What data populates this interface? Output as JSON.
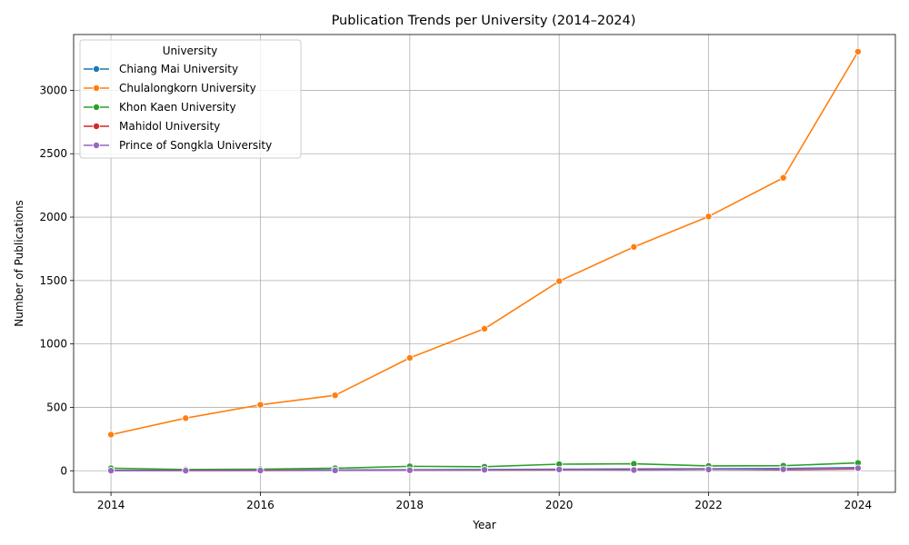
{
  "chart_data": {
    "type": "line",
    "title": "Publication Trends per University (2014–2024)",
    "xlabel": "Year",
    "ylabel": "Number of Publications",
    "xlim": [
      2013.5,
      2024.5
    ],
    "ylim": [
      -170,
      3440
    ],
    "x_ticks": [
      2014,
      2016,
      2018,
      2020,
      2022,
      2024
    ],
    "y_ticks": [
      0,
      500,
      1000,
      1500,
      2000,
      2500,
      3000
    ],
    "grid": true,
    "legend": {
      "title": "University",
      "placement": "top-left"
    },
    "x": [
      2014,
      2015,
      2016,
      2017,
      2018,
      2019,
      2020,
      2021,
      2022,
      2023,
      2024
    ],
    "series": [
      {
        "name": "Chiang Mai University",
        "color": "#1f77b4",
        "values": [
          2,
          3,
          5,
          6,
          8,
          10,
          12,
          14,
          15,
          18,
          25
        ]
      },
      {
        "name": "Chulalongkorn University",
        "color": "#ff7f0e",
        "values": [
          285,
          415,
          520,
          595,
          890,
          1120,
          1495,
          1765,
          2005,
          2310,
          3305
        ]
      },
      {
        "name": "Khon Kaen University",
        "color": "#2ca02c",
        "values": [
          20,
          10,
          12,
          20,
          35,
          32,
          52,
          55,
          38,
          40,
          62
        ]
      },
      {
        "name": "Mahidol University",
        "color": "#d62728",
        "values": [
          1,
          2,
          3,
          4,
          5,
          6,
          8,
          10,
          12,
          8,
          15
        ]
      },
      {
        "name": "Prince of Songkla University",
        "color": "#9467bd",
        "values": [
          1,
          1,
          2,
          3,
          4,
          8,
          10,
          6,
          10,
          12,
          20
        ]
      }
    ]
  }
}
